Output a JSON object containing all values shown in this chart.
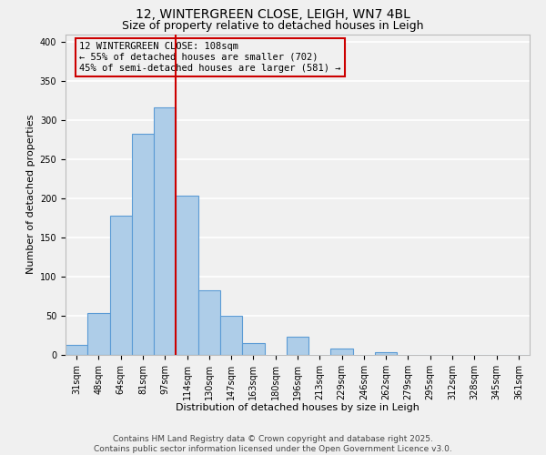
{
  "title1": "12, WINTERGREEN CLOSE, LEIGH, WN7 4BL",
  "title2": "Size of property relative to detached houses in Leigh",
  "xlabel": "Distribution of detached houses by size in Leigh",
  "ylabel": "Number of detached properties",
  "categories": [
    "31sqm",
    "48sqm",
    "64sqm",
    "81sqm",
    "97sqm",
    "114sqm",
    "130sqm",
    "147sqm",
    "163sqm",
    "180sqm",
    "196sqm",
    "213sqm",
    "229sqm",
    "246sqm",
    "262sqm",
    "279sqm",
    "295sqm",
    "312sqm",
    "328sqm",
    "345sqm",
    "361sqm"
  ],
  "values": [
    13,
    53,
    178,
    283,
    316,
    203,
    83,
    50,
    15,
    0,
    23,
    0,
    8,
    0,
    4,
    0,
    0,
    0,
    0,
    0,
    0
  ],
  "bar_color": "#aecde8",
  "bar_edge_color": "#5b9bd5",
  "vline_x_idx": 5,
  "vline_color": "#cc0000",
  "annotation_title": "12 WINTERGREEN CLOSE: 108sqm",
  "annotation_line1": "← 55% of detached houses are smaller (702)",
  "annotation_line2": "45% of semi-detached houses are larger (581) →",
  "box_edge_color": "#cc0000",
  "ylim": [
    0,
    410
  ],
  "yticks": [
    0,
    50,
    100,
    150,
    200,
    250,
    300,
    350,
    400
  ],
  "footer1": "Contains HM Land Registry data © Crown copyright and database right 2025.",
  "footer2": "Contains public sector information licensed under the Open Government Licence v3.0.",
  "bg_color": "#f0f0f0",
  "grid_color": "#ffffff",
  "title_fontsize": 10,
  "subtitle_fontsize": 9,
  "footer_fontsize": 6.5,
  "axis_label_fontsize": 8,
  "tick_fontsize": 7
}
